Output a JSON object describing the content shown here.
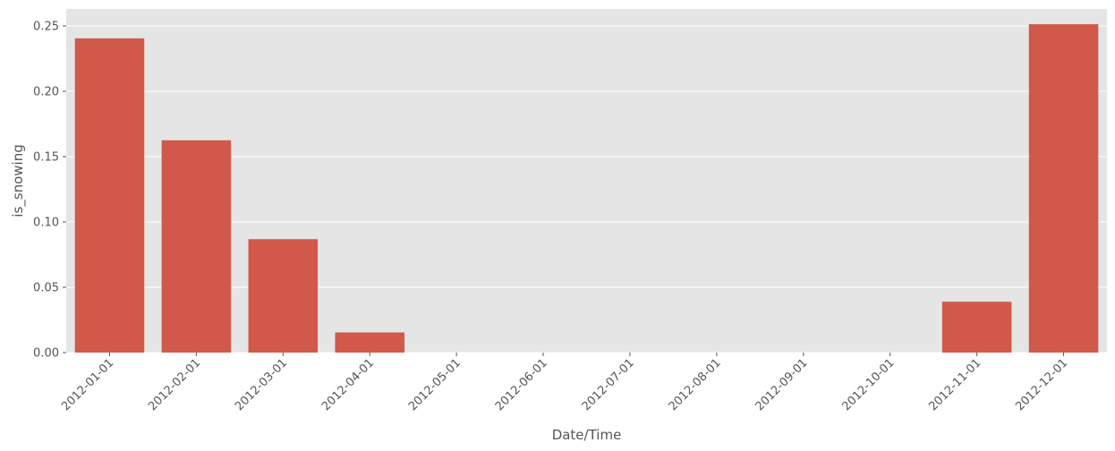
{
  "chart_data": {
    "type": "bar",
    "title": "",
    "xlabel": "Date/Time",
    "ylabel": "is_snowing",
    "categories": [
      "2012-01-01",
      "2012-02-01",
      "2012-03-01",
      "2012-04-01",
      "2012-05-01",
      "2012-06-01",
      "2012-07-01",
      "2012-08-01",
      "2012-09-01",
      "2012-10-01",
      "2012-11-01",
      "2012-12-01"
    ],
    "values": [
      0.2405,
      0.1625,
      0.0868,
      0.0154,
      0,
      0,
      0,
      0,
      0,
      0,
      0.0389,
      0.2513
    ],
    "ylim": [
      0,
      0.263
    ],
    "yticks": [
      0.0,
      0.05,
      0.1,
      0.15,
      0.2,
      0.25
    ],
    "ytick_labels": [
      "0.00",
      "0.05",
      "0.10",
      "0.15",
      "0.20",
      "0.25"
    ],
    "grid": true,
    "colors": {
      "bar": "#d0594a",
      "plot_background": "#e5e5e5",
      "grid": "#ffffff",
      "text": "#555555"
    }
  }
}
